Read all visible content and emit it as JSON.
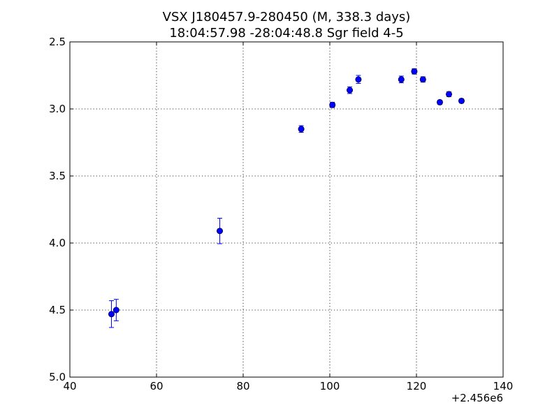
{
  "chart_data": {
    "type": "scatter",
    "title": "VSX J180457.9-280450 (M, 338.3 days)",
    "subtitle": "18:04:57.98 -28:04:48.8 Sgr field 4-5",
    "xlabel": "",
    "ylabel": "",
    "x_offset_label": "+2.456e6",
    "xlim": [
      40,
      140
    ],
    "ylim": [
      2.5,
      5.0
    ],
    "y_inverted": true,
    "grid": true,
    "x_ticks": [
      40,
      60,
      80,
      100,
      120,
      140
    ],
    "x_tick_labels": [
      "40",
      "60",
      "80",
      "100",
      "120",
      "140"
    ],
    "y_ticks": [
      2.5,
      3.0,
      3.5,
      4.0,
      4.5,
      5.0
    ],
    "y_tick_labels": [
      "2.5",
      "3.0",
      "3.5",
      "4.0",
      "4.5",
      "5.0"
    ],
    "marker_color": "#0000ff",
    "series": [
      {
        "points": [
          {
            "x": 49.6,
            "y": 4.53,
            "err": 0.1
          },
          {
            "x": 50.7,
            "y": 4.5,
            "err": 0.08
          },
          {
            "x": 74.6,
            "y": 3.91,
            "err": 0.095
          },
          {
            "x": 93.4,
            "y": 3.15,
            "err": 0.025
          },
          {
            "x": 100.6,
            "y": 2.97,
            "err": 0.02
          },
          {
            "x": 104.6,
            "y": 2.86,
            "err": 0.025
          },
          {
            "x": 106.6,
            "y": 2.78,
            "err": 0.03
          },
          {
            "x": 116.5,
            "y": 2.78,
            "err": 0.025
          },
          {
            "x": 119.5,
            "y": 2.72,
            "err": 0.02
          },
          {
            "x": 121.5,
            "y": 2.78,
            "err": 0.02
          },
          {
            "x": 125.4,
            "y": 2.95,
            "err": 0.015
          },
          {
            "x": 127.5,
            "y": 2.89,
            "err": 0.018
          },
          {
            "x": 130.4,
            "y": 2.94,
            "err": 0.015
          }
        ]
      }
    ]
  }
}
